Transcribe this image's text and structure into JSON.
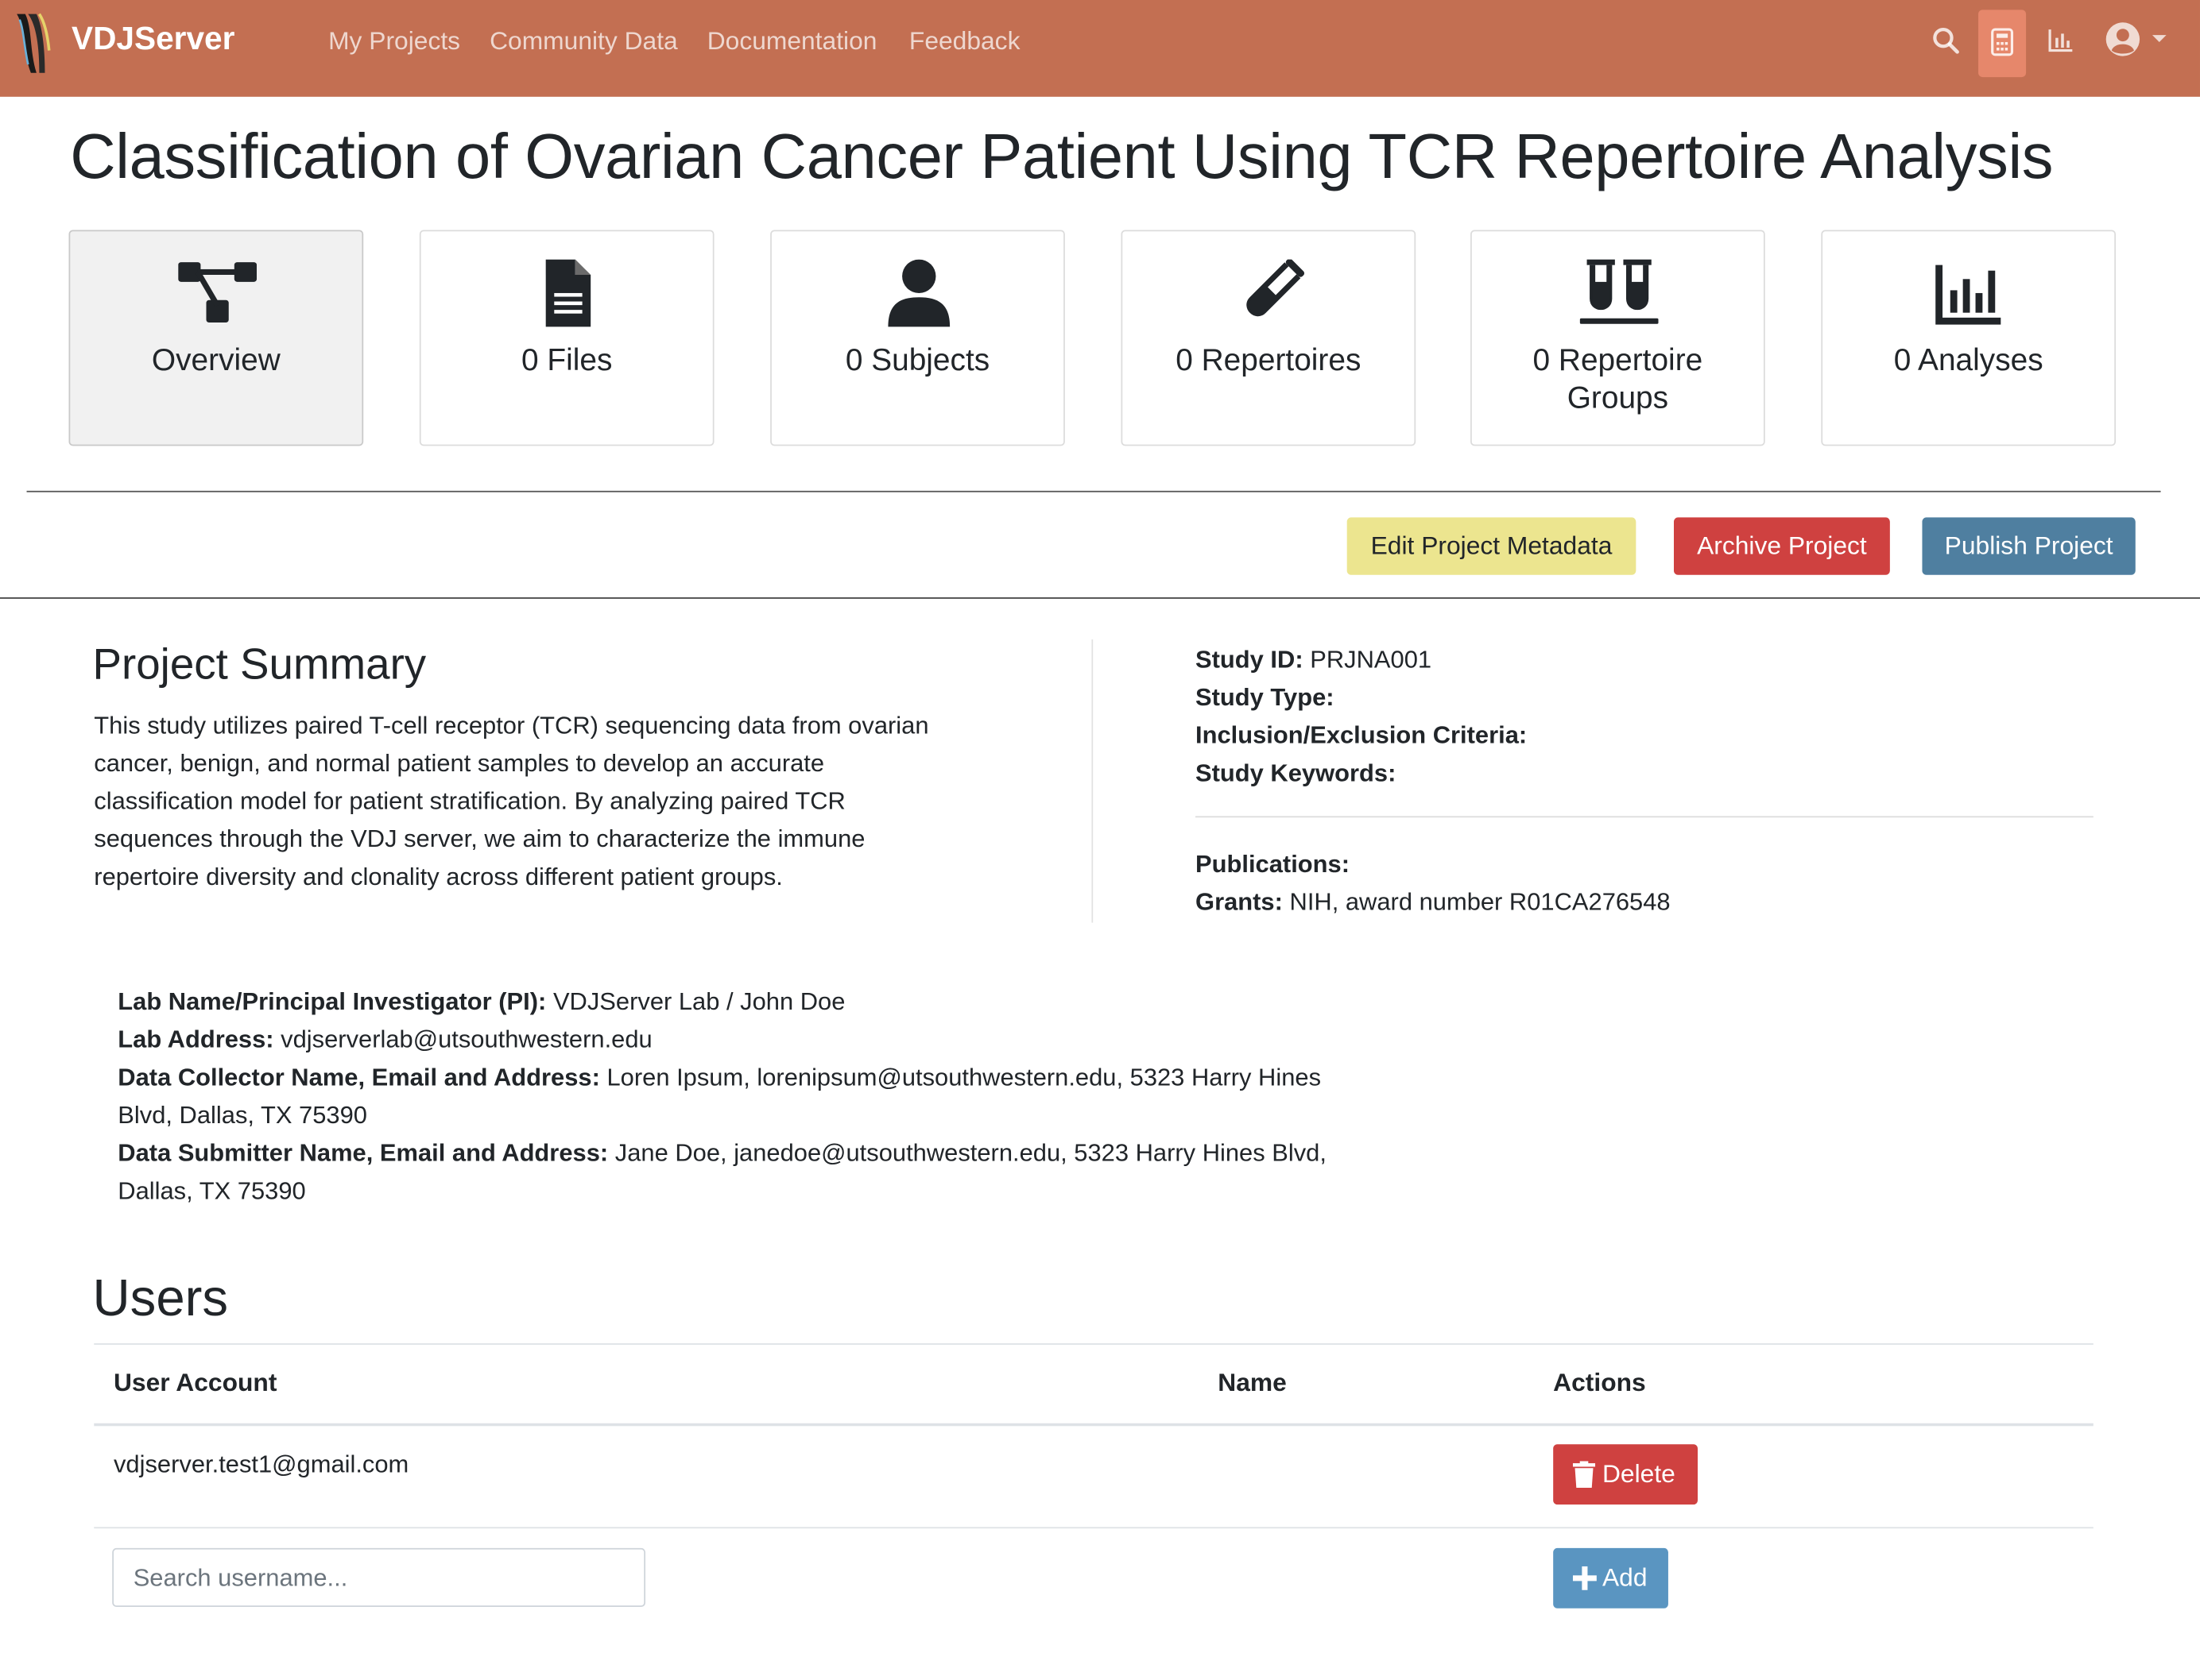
{
  "navbar": {
    "brand": "VDJServer",
    "links": [
      "My Projects",
      "Community Data",
      "Documentation",
      "Feedback"
    ],
    "icons": [
      "search-icon",
      "calculator-icon",
      "chart-icon",
      "user-circle-icon",
      "caret-down-icon"
    ],
    "background": "#c36f52"
  },
  "project": {
    "title": "Classification of Ovarian Cancer Patient Using TCR Repertoire Analysis"
  },
  "cards": [
    {
      "label": "Overview",
      "icon": "sitemap-icon"
    },
    {
      "label": "0 Files",
      "icon": "file-icon"
    },
    {
      "label": "0 Subjects",
      "icon": "user-icon"
    },
    {
      "label": "0 Repertoires",
      "icon": "vial-icon"
    },
    {
      "label": "0 Repertoire Groups",
      "icon": "vials-icon"
    },
    {
      "label": "0 Analyses",
      "icon": "chart-bar-icon"
    }
  ],
  "actions": {
    "edit": "Edit Project Metadata",
    "archive": "Archive Project",
    "publish": "Publish Project"
  },
  "summary": {
    "title": "Project Summary",
    "lines": [
      "This study utilizes paired T-cell receptor (TCR) sequencing data from ovarian",
      "cancer, benign, and normal patient samples to develop an accurate",
      "classification model for patient stratification. By analyzing paired TCR",
      "sequences through the VDJ server, we aim to characterize the immune",
      "repertoire diversity and clonality across different patient groups."
    ]
  },
  "study": {
    "id_label": "Study ID:",
    "id_value": "PRJNA001",
    "type_label": "Study Type:",
    "type_value": "",
    "criteria_label": "Inclusion/Exclusion Criteria:",
    "criteria_value": "",
    "keywords_label": "Study Keywords:",
    "keywords_value": "",
    "publications_label": "Publications:",
    "publications_value": "",
    "grants_label": "Grants:",
    "grants_value": "NIH, award number R01CA276548"
  },
  "contacts": {
    "pi_label": "Lab Name/Principal Investigator (PI):",
    "pi_value": "VDJServer Lab / John Doe",
    "address_label": "Lab Address:",
    "address_value": "vdjserverlab@utsouthwestern.edu",
    "collector_label": "Data Collector Name, Email and Address:",
    "collector_value_1": "Loren Ipsum, lorenipsum@utsouthwestern.edu, 5323 Harry Hines",
    "collector_value_2": "Blvd, Dallas, TX 75390",
    "submitter_label": "Data Submitter Name, Email and Address:",
    "submitter_value_1": "Jane Doe, janedoe@utsouthwestern.edu, 5323 Harry Hines Blvd,",
    "submitter_value_2": "Dallas, TX 75390"
  },
  "users": {
    "title": "Users",
    "headers": [
      "User Account",
      "Name",
      "Actions"
    ],
    "rows": [
      {
        "account": "vdjserver.test1@gmail.com",
        "name": "",
        "action": "Delete"
      }
    ],
    "search_placeholder": "Search username...",
    "add_label": "Add"
  }
}
